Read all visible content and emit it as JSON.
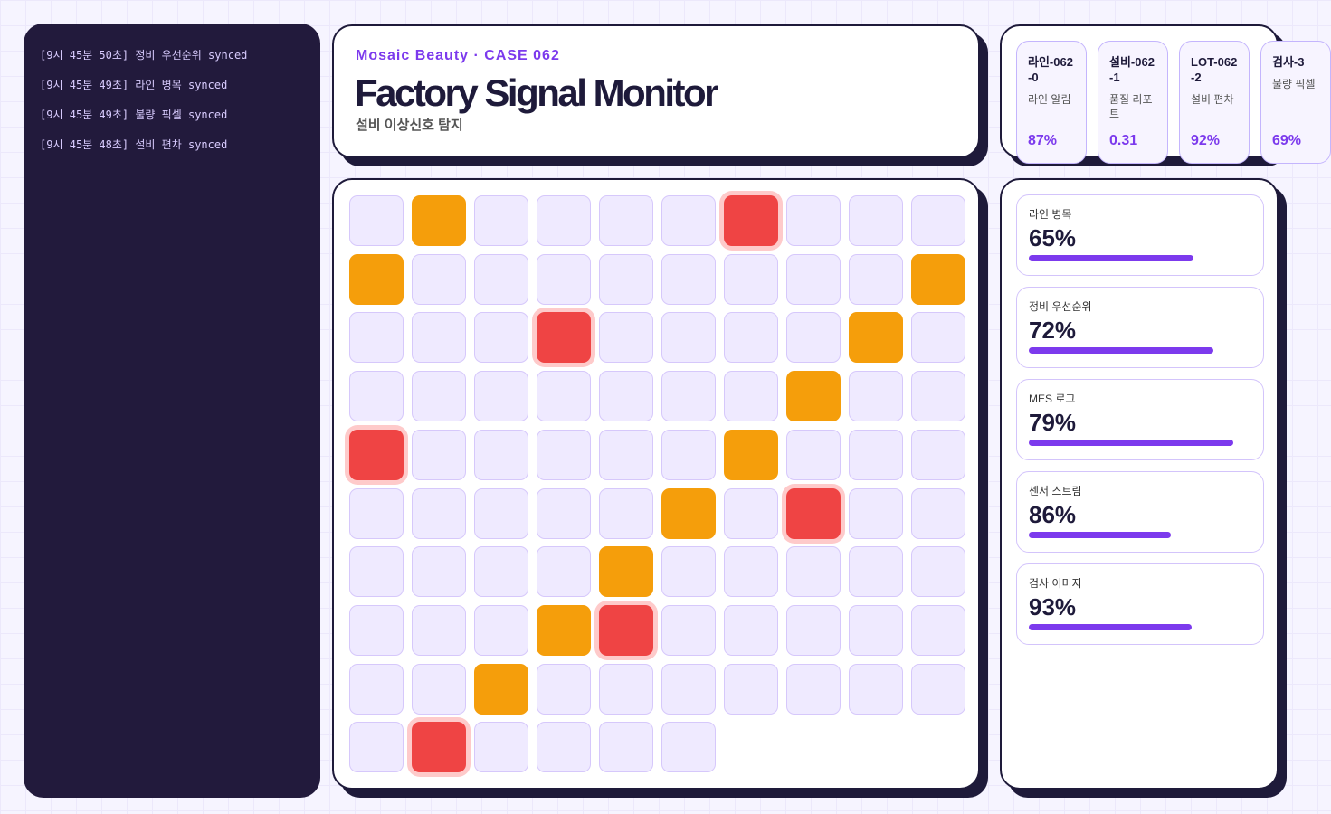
{
  "log": [
    "[9시 45분 50초] 정비 우선순위 synced",
    "[9시 45분 49초] 라인 병목 synced",
    "[9시 45분 49초] 불량 픽셀 synced",
    "[9시 45분 48초] 설비 편차 synced"
  ],
  "header": {
    "eyebrow": "Mosaic Beauty · CASE 062",
    "title": "Factory Signal Monitor",
    "subtitle": "설비 이상신호 탐지"
  },
  "cards": [
    {
      "id": "라인-062-0",
      "label": "라인 알림",
      "value": "87%"
    },
    {
      "id": "설비-062-1",
      "label": "품질 리포트",
      "value": "0.31"
    },
    {
      "id": "LOT-062-2",
      "label": "설비 편차",
      "value": "92%"
    },
    {
      "id": "검사-3",
      "label": "불량 픽셀",
      "value": "69%"
    }
  ],
  "grid": {
    "cells": [
      "#efeaff",
      "#f59e0b",
      "#efeaff",
      "#efeaff",
      "#efeaff",
      "#efeaff",
      "#ef4444",
      "#efeaff",
      "#efeaff",
      "#efeaff",
      "#f59e0b",
      "#efeaff",
      "#efeaff",
      "#efeaff",
      "#efeaff",
      "#efeaff",
      "#efeaff",
      "#efeaff",
      "#efeaff",
      "#f59e0b",
      "#efeaff",
      "#efeaff",
      "#efeaff",
      "#ef4444",
      "#efeaff",
      "#efeaff",
      "#efeaff",
      "#efeaff",
      "#f59e0b",
      "#efeaff",
      "#efeaff",
      "#efeaff",
      "#efeaff",
      "#efeaff",
      "#efeaff",
      "#efeaff",
      "#efeaff",
      "#f59e0b",
      "#efeaff",
      "#efeaff",
      "#ef4444",
      "#efeaff",
      "#efeaff",
      "#efeaff",
      "#efeaff",
      "#efeaff",
      "#f59e0b",
      "#efeaff",
      "#efeaff",
      "#efeaff",
      "#efeaff",
      "#efeaff",
      "#efeaff",
      "#efeaff",
      "#efeaff",
      "#f59e0b",
      "#efeaff",
      "#ef4444",
      "#efeaff",
      "#efeaff",
      "#efeaff",
      "#efeaff",
      "#efeaff",
      "#efeaff",
      "#f59e0b",
      "#efeaff",
      "#efeaff",
      "#efeaff",
      "#efeaff",
      "#efeaff",
      "#efeaff",
      "#efeaff",
      "#efeaff",
      "#f59e0b",
      "#ef4444",
      "#efeaff",
      "#efeaff",
      "#efeaff",
      "#efeaff",
      "#efeaff",
      "#efeaff",
      "#efeaff",
      "#f59e0b",
      "#efeaff",
      "#efeaff",
      "#efeaff",
      "#efeaff",
      "#efeaff",
      "#efeaff",
      "#efeaff",
      "#efeaff",
      "#ef4444",
      "#efeaff",
      "#efeaff",
      "#efeaff",
      "#efeaff"
    ],
    "alert_color": "#ef4444"
  },
  "metrics": [
    {
      "label": "라인 병목",
      "value": "65%",
      "bar": 74
    },
    {
      "label": "정비 우선순위",
      "value": "72%",
      "bar": 83
    },
    {
      "label": "MES 로그",
      "value": "79%",
      "bar": 92
    },
    {
      "label": "센서 스트림",
      "value": "86%",
      "bar": 64
    },
    {
      "label": "검사 이미지",
      "value": "93%",
      "bar": 73
    }
  ]
}
